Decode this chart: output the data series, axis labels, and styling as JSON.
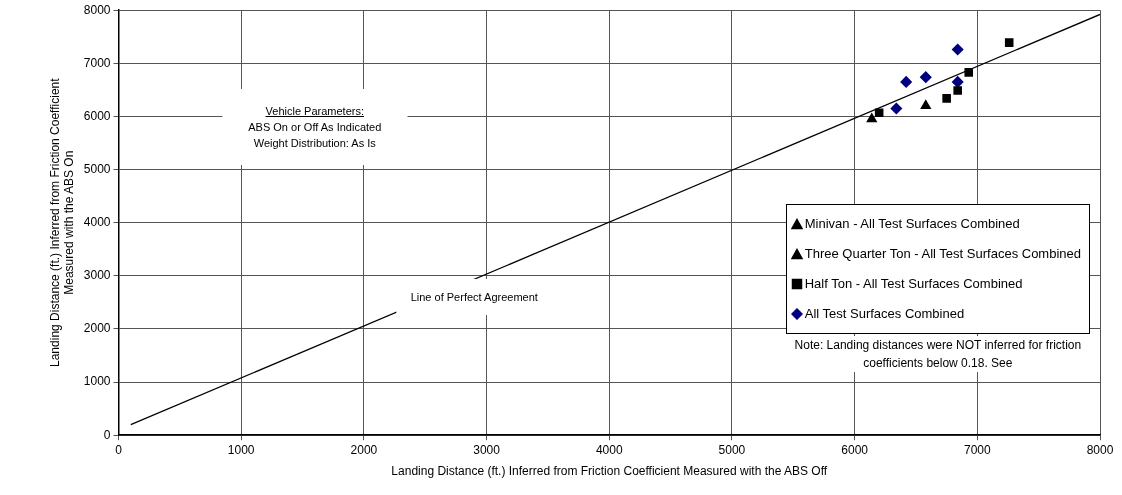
{
  "chart_data": {
    "type": "scatter",
    "xlabel": "Landing Distance (ft.) Inferred from Friction Coefficient Measured with the ABS Off",
    "ylabel": "Landing Distance (ft.) Inferred from Friction Coefficient Measured with the ABS On",
    "xlim": [
      0,
      8000
    ],
    "xticks": [
      0,
      1000,
      2000,
      3000,
      4000,
      5000,
      6000,
      7000,
      8000
    ],
    "ylim": [
      0,
      8000
    ],
    "yticks": [
      0,
      1000,
      2000,
      3000,
      4000,
      5000,
      6000,
      7000,
      8000
    ],
    "grid": true,
    "legend": "bottom right",
    "series": [
      {
        "type": "line",
        "color": "#000000",
        "marker": "none",
        "x": [
          100,
          8000
        ],
        "values": [
          200,
          7920
        ]
      },
      {
        "name": "Minivan - All Test Surfaces Combined",
        "color": "#000000",
        "marker": "triangle",
        "x": [
          6140
        ],
        "values": [
          5950
        ]
      },
      {
        "name": "Three Quarter Ton - All Test Surfaces Combined",
        "color": "#000000",
        "marker": "triangle",
        "x": [
          6580
        ],
        "values": [
          6200
        ]
      },
      {
        "name": "Half Ton - All Test Surfaces Combined",
        "color": "#000000",
        "marker": "square",
        "x": [
          6200,
          6750,
          6840,
          6930,
          7260
        ],
        "values": [
          6070,
          6340,
          6490,
          6830,
          7390
        ]
      },
      {
        "name": "All Test Surfaces Combined",
        "color": "#000080",
        "marker": "diamond",
        "x": [
          6340,
          6420,
          6580,
          6840,
          6840
        ],
        "values": [
          6150,
          6650,
          6740,
          7260,
          6650
        ]
      }
    ],
    "annotations": [
      "Vehicle Parameters:",
      "ABS On or Off As Indicated",
      "Weight Distribution: As Is",
      "Line of Perfect Agreement",
      "Note: Landing distances were NOT inferred for friction coefficients below 0.18. See"
    ]
  }
}
